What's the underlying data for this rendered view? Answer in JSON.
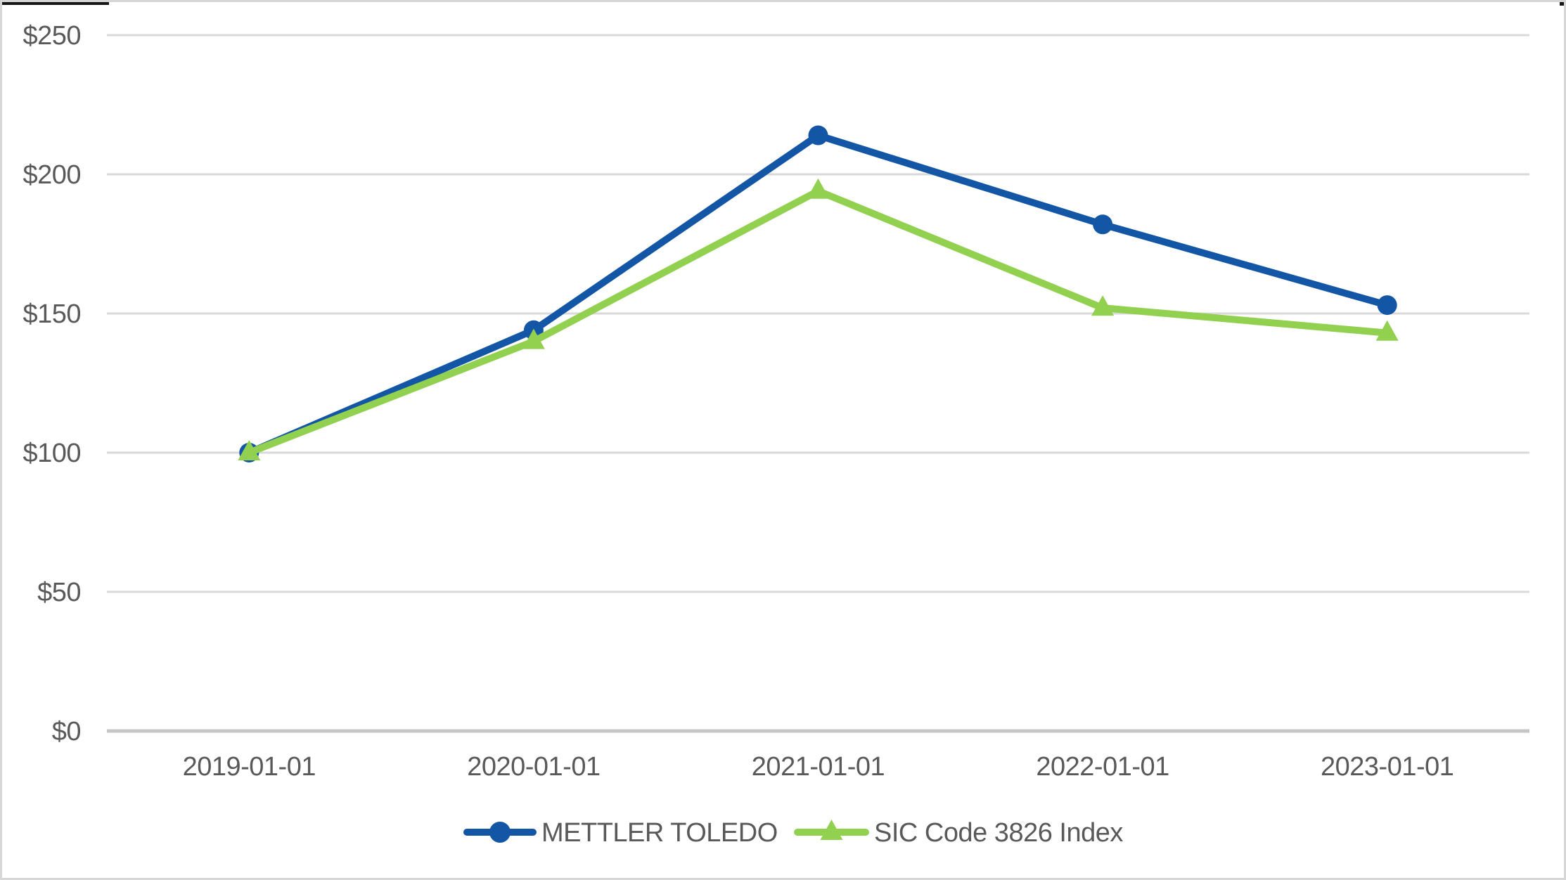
{
  "page": {
    "background": "#ffffff",
    "border_color": "#d6d6d6"
  },
  "colors": {
    "grid_line": "#d9d9d9",
    "axis_line": "#c6c6c6",
    "tick_text": "#595959",
    "series_blue": "#1356a6",
    "series_green": "#92d050"
  },
  "chart_data": {
    "type": "line",
    "title": "",
    "xlabel": "",
    "ylabel": "",
    "categories": [
      "2019-01-01",
      "2020-01-01",
      "2021-01-01",
      "2022-01-01",
      "2023-01-01"
    ],
    "series": [
      {
        "name": "METTLER TOLEDO",
        "color": "#1356a6",
        "marker": "circle",
        "values": [
          100,
          144,
          214,
          182,
          153
        ]
      },
      {
        "name": "SIC Code 3826 Index",
        "color": "#92d050",
        "marker": "triangle",
        "values": [
          100,
          140,
          194,
          152,
          143
        ]
      }
    ],
    "ylim": [
      0,
      250
    ],
    "yticks": [
      {
        "value": 0,
        "label": "$0"
      },
      {
        "value": 50,
        "label": "$50"
      },
      {
        "value": 100,
        "label": "$100"
      },
      {
        "value": 150,
        "label": "$150"
      },
      {
        "value": 200,
        "label": "$200"
      },
      {
        "value": 250,
        "label": "$250"
      }
    ],
    "grid": true,
    "legend_position": "bottom"
  }
}
